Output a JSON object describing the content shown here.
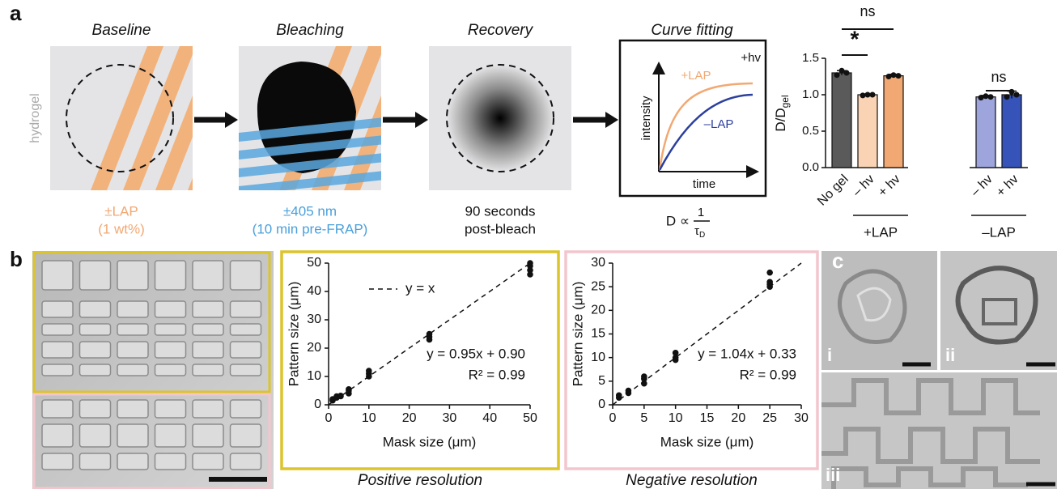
{
  "panel_a": {
    "label": "a",
    "side_label": "hydrogel",
    "steps": [
      {
        "title": "Baseline",
        "caption": [
          "±LAP",
          "(1 wt%)"
        ]
      },
      {
        "title": "Bleaching",
        "caption": [
          "±405 nm",
          "(10 min pre-FRAP)"
        ]
      },
      {
        "title": "Recovery",
        "caption": [
          "90 seconds",
          "post-bleach"
        ]
      },
      {
        "title": "Curve fitting"
      }
    ],
    "curve_inset": {
      "light": "+hv",
      "curves": [
        "+LAP",
        "–LAP"
      ],
      "ylabel": "intensity",
      "xlabel": "time"
    },
    "formula": {
      "lhs": "D ∝",
      "numerator": "1",
      "denominator": "τ",
      "denominator_sub": "D"
    }
  },
  "panel_b": {
    "label": "b"
  },
  "panel_c": {
    "label": "c",
    "insets": [
      "i",
      "ii",
      "iii"
    ]
  },
  "chart_data": [
    {
      "type": "bar",
      "ylabel": "D/D",
      "ylabel_sub": "gel",
      "categories": [
        "No gel",
        "– hv",
        "+ hv",
        "– hv",
        "+ hv"
      ],
      "values": [
        1.3,
        1.0,
        1.26,
        0.97,
        1.0
      ],
      "errors": [
        0.03,
        0.01,
        0.02,
        0.02,
        0.05
      ],
      "points": [
        [
          1.27,
          1.33,
          1.3
        ],
        [
          0.99,
          1.0,
          1.0
        ],
        [
          1.25,
          1.27,
          1.26
        ],
        [
          0.96,
          0.98,
          0.97
        ],
        [
          0.97,
          1.04,
          1.0
        ]
      ],
      "colors": [
        "#5a5a5a",
        "#f9d3b4",
        "#f2a872",
        "#9ea5dc",
        "#3553b8"
      ],
      "ylim": [
        0,
        1.5
      ],
      "yticks": [
        {
          "value": 0,
          "label": "0.0"
        },
        {
          "value": 0.5,
          "label": "0.5"
        },
        {
          "value": 1,
          "label": "1.0"
        },
        {
          "value": 1.5,
          "label": "1.5"
        }
      ],
      "groups": [
        {
          "label": "+LAP",
          "members": [
            1,
            2
          ]
        },
        {
          "label": "–LAP",
          "members": [
            3,
            4
          ]
        }
      ],
      "significance": [
        {
          "label": "ns",
          "between": [
            0,
            2
          ]
        },
        {
          "label": "*",
          "between": [
            0,
            1
          ]
        },
        {
          "label": "ns",
          "between": [
            3,
            4
          ]
        }
      ]
    },
    {
      "type": "scatter",
      "title": "Positive resolution",
      "xlabel": "Mask size (μm)",
      "ylabel": "Pattern size (μm)",
      "x": [
        1,
        1,
        2,
        2,
        3,
        3,
        5,
        5,
        5,
        10,
        10,
        10,
        25,
        25,
        25,
        50,
        50,
        50,
        50
      ],
      "y": [
        1.5,
        2,
        2.5,
        3,
        3,
        3.2,
        4,
        5,
        5.5,
        10,
        11,
        12,
        23,
        24,
        25,
        46,
        47.5,
        49,
        50
      ],
      "color": "#111111",
      "xlim": [
        0,
        50
      ],
      "ylim": [
        0,
        50
      ],
      "xticks": [
        0,
        10,
        20,
        30,
        40,
        50
      ],
      "yticks": [
        0,
        10,
        20,
        30,
        40,
        50
      ],
      "diagonal": true,
      "legend": "y = x",
      "annotations": [
        "y = 0.95x + 0.90",
        "R² = 0.99"
      ],
      "frame_color": "#dcc42c"
    },
    {
      "type": "scatter",
      "title": "Negative resolution",
      "xlabel": "Mask size (μm)",
      "ylabel": "Pattern size (μm)",
      "x": [
        1,
        1,
        2.5,
        2.5,
        5,
        5,
        5,
        10,
        10,
        10,
        25,
        25,
        25,
        25
      ],
      "y": [
        1.5,
        2,
        2.5,
        3,
        4.5,
        5.5,
        6,
        9.5,
        10,
        11,
        25,
        25.5,
        26,
        28
      ],
      "color": "#111111",
      "xlim": [
        0,
        30
      ],
      "ylim": [
        0,
        30
      ],
      "xticks": [
        0,
        5,
        10,
        15,
        20,
        25,
        30
      ],
      "yticks": [
        0,
        5,
        10,
        15,
        20,
        25,
        30
      ],
      "diagonal": true,
      "annotations": [
        "y = 1.04x + 0.33",
        "R² = 0.99"
      ],
      "frame_color": "#f3c6cd"
    }
  ]
}
